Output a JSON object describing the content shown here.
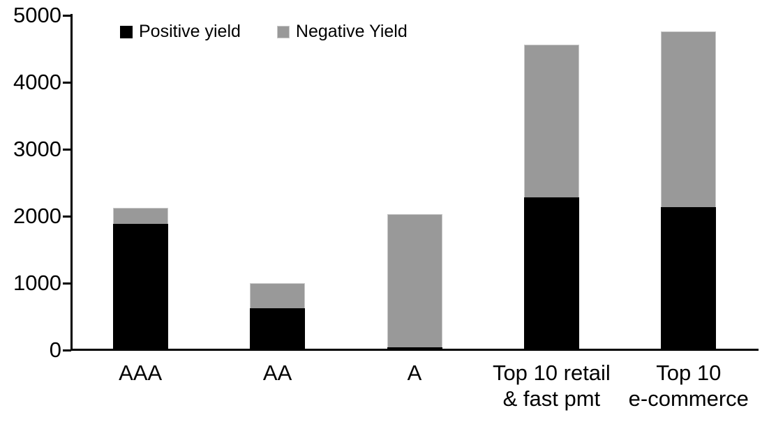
{
  "chart_data": {
    "type": "bar",
    "stacked": true,
    "title": "",
    "xlabel": "",
    "ylabel": "",
    "categories": [
      "AAA",
      "AA",
      "A",
      "Top 10 retail\n& fast pmt",
      "Top 10\ne-commerce"
    ],
    "series": [
      {
        "name": "Positive yield",
        "color": "#000000",
        "values": [
          1890,
          620,
          40,
          2280,
          2140
        ]
      },
      {
        "name": "Negative Yield",
        "color": "#999999",
        "values": [
          230,
          380,
          1990,
          2280,
          2620
        ]
      }
    ],
    "totals": [
      2120,
      1000,
      2030,
      4560,
      4760
    ],
    "ylim": [
      0,
      5000
    ],
    "yticks": [
      0,
      1000,
      2000,
      3000,
      4000,
      5000
    ],
    "grid": false,
    "legend_position": "top-left-inside",
    "axis_color": "#000000",
    "background_color": "#ffffff"
  }
}
